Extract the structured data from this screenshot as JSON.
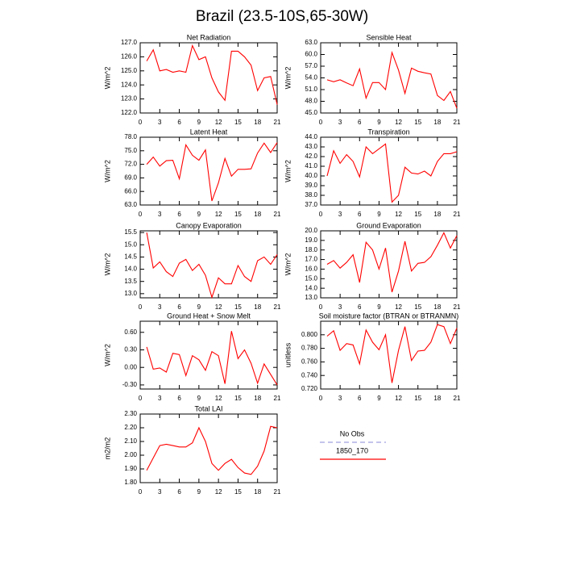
{
  "title": "Brazil (23.5-10S,65-30W)",
  "legend": [
    {
      "name": "No Obs",
      "color": "#a0a0e0",
      "dashed": true
    },
    {
      "name": "1850_170",
      "color": "#ff0000",
      "dashed": false
    }
  ],
  "chart_data": [
    {
      "type": "line",
      "title": "Net Radiation",
      "ylabel": "W/m^2",
      "color": "#ff0000",
      "x": [
        1,
        2,
        3,
        4,
        5,
        6,
        7,
        8,
        9,
        10,
        11,
        12,
        13,
        14,
        15,
        16,
        17,
        18,
        19,
        20,
        21
      ],
      "values": [
        125.7,
        126.5,
        125.0,
        125.1,
        124.9,
        125.0,
        124.9,
        126.8,
        125.8,
        126.0,
        124.5,
        123.5,
        122.9,
        126.4,
        126.4,
        126.0,
        125.4,
        123.6,
        124.5,
        124.6,
        122.6
      ],
      "xlim": [
        0,
        21
      ],
      "xticks": [
        0,
        3,
        6,
        9,
        12,
        15,
        18,
        21
      ],
      "ylim": [
        122,
        127
      ],
      "yticks": [
        {
          "value": 122,
          "label": "122.0"
        },
        {
          "value": 123,
          "label": "123.0"
        },
        {
          "value": 124,
          "label": "124.0"
        },
        {
          "value": 125,
          "label": "125.0"
        },
        {
          "value": 126,
          "label": "126.0"
        },
        {
          "value": 127,
          "label": "127.0"
        }
      ]
    },
    {
      "type": "line",
      "title": "Sensible Heat",
      "ylabel": "W/m^2",
      "color": "#ff0000",
      "x": [
        1,
        2,
        3,
        4,
        5,
        6,
        7,
        8,
        9,
        10,
        11,
        12,
        13,
        14,
        15,
        16,
        17,
        18,
        19,
        20,
        21
      ],
      "values": [
        53.5,
        53.0,
        53.5,
        52.7,
        52.0,
        56.3,
        48.8,
        52.8,
        52.8,
        51.0,
        60.5,
        56.0,
        50.0,
        56.5,
        55.7,
        55.3,
        55.0,
        49.5,
        48.2,
        50.5,
        46.2
      ],
      "xlim": [
        0,
        21
      ],
      "xticks": [
        0,
        3,
        6,
        9,
        12,
        15,
        18,
        21
      ],
      "ylim": [
        45,
        63
      ],
      "yticks": [
        {
          "value": 45,
          "label": "45.0"
        },
        {
          "value": 48,
          "label": "48.0"
        },
        {
          "value": 51,
          "label": "51.0"
        },
        {
          "value": 54,
          "label": "54.0"
        },
        {
          "value": 57,
          "label": "57.0"
        },
        {
          "value": 60,
          "label": "60.0"
        },
        {
          "value": 63,
          "label": "63.0"
        }
      ]
    },
    {
      "type": "line",
      "title": "Latent Heat",
      "ylabel": "W/m^2",
      "color": "#ff0000",
      "x": [
        1,
        2,
        3,
        4,
        5,
        6,
        7,
        8,
        9,
        10,
        11,
        12,
        13,
        14,
        15,
        16,
        17,
        18,
        19,
        20,
        21
      ],
      "values": [
        72.0,
        73.6,
        71.6,
        72.8,
        72.9,
        68.8,
        76.3,
        74.0,
        72.9,
        75.2,
        63.9,
        67.9,
        73.3,
        69.4,
        70.9,
        70.9,
        71.0,
        74.5,
        76.7,
        74.6,
        76.8
      ],
      "xlim": [
        0,
        21
      ],
      "xticks": [
        0,
        3,
        6,
        9,
        12,
        15,
        18,
        21
      ],
      "ylim": [
        63,
        78
      ],
      "yticks": [
        {
          "value": 63,
          "label": "63.0"
        },
        {
          "value": 66,
          "label": "66.0"
        },
        {
          "value": 69,
          "label": "69.0"
        },
        {
          "value": 72,
          "label": "72.0"
        },
        {
          "value": 75,
          "label": "75.0"
        },
        {
          "value": 78,
          "label": "78.0"
        }
      ]
    },
    {
      "type": "line",
      "title": "Transpiration",
      "ylabel": "W/m^2",
      "color": "#ff0000",
      "x": [
        1,
        2,
        3,
        4,
        5,
        6,
        7,
        8,
        9,
        10,
        11,
        12,
        13,
        14,
        15,
        16,
        17,
        18,
        19,
        20,
        21
      ],
      "values": [
        40.0,
        42.6,
        41.3,
        42.2,
        41.5,
        39.9,
        43.0,
        42.3,
        42.8,
        43.3,
        37.3,
        38.0,
        40.9,
        40.3,
        40.2,
        40.5,
        40.0,
        41.5,
        42.3,
        42.3,
        42.5
      ],
      "xlim": [
        0,
        21
      ],
      "xticks": [
        0,
        3,
        6,
        9,
        12,
        15,
        18,
        21
      ],
      "ylim": [
        37,
        44
      ],
      "yticks": [
        {
          "value": 37,
          "label": "37.0"
        },
        {
          "value": 38,
          "label": "38.0"
        },
        {
          "value": 39,
          "label": "39.0"
        },
        {
          "value": 40,
          "label": "40.0"
        },
        {
          "value": 41,
          "label": "41.0"
        },
        {
          "value": 42,
          "label": "42.0"
        },
        {
          "value": 43,
          "label": "43.0"
        },
        {
          "value": 44,
          "label": "44.0"
        }
      ]
    },
    {
      "type": "line",
      "title": "Canopy Evaporation",
      "ylabel": "W/m^2",
      "color": "#ff0000",
      "x": [
        1,
        2,
        3,
        4,
        5,
        6,
        7,
        8,
        9,
        10,
        11,
        12,
        13,
        14,
        15,
        16,
        17,
        18,
        19,
        20,
        21
      ],
      "values": [
        15.5,
        14.05,
        14.3,
        13.9,
        13.7,
        14.25,
        14.4,
        13.95,
        14.2,
        13.75,
        12.85,
        13.65,
        13.4,
        13.4,
        14.15,
        13.7,
        13.5,
        14.35,
        14.5,
        14.2,
        14.6
      ],
      "xlim": [
        0,
        21
      ],
      "xticks": [
        0,
        3,
        6,
        9,
        12,
        15,
        18,
        21
      ],
      "ylim": [
        12.83,
        15.57
      ],
      "yticks": [
        {
          "value": 13,
          "label": "13.0"
        },
        13.5,
        {
          "value": 14,
          "label": "14.0"
        },
        14.5,
        {
          "value": 15,
          "label": "15.0"
        },
        15.5
      ]
    },
    {
      "type": "line",
      "title": "Ground Evaporation",
      "ylabel": "W/m^2",
      "color": "#ff0000",
      "x": [
        1,
        2,
        3,
        4,
        5,
        6,
        7,
        8,
        9,
        10,
        11,
        12,
        13,
        14,
        15,
        16,
        17,
        18,
        19,
        20,
        21
      ],
      "values": [
        16.5,
        16.9,
        16.1,
        16.7,
        17.5,
        14.6,
        18.8,
        18.0,
        16.0,
        18.2,
        13.6,
        15.8,
        18.9,
        15.8,
        16.6,
        16.7,
        17.3,
        18.5,
        19.8,
        18.2,
        19.5
      ],
      "xlim": [
        0,
        21
      ],
      "xticks": [
        0,
        3,
        6,
        9,
        12,
        15,
        18,
        21
      ],
      "ylim": [
        13,
        20
      ],
      "yticks": [
        {
          "value": 13,
          "label": "13.0"
        },
        {
          "value": 14,
          "label": "14.0"
        },
        {
          "value": 15,
          "label": "15.0"
        },
        {
          "value": 16,
          "label": "16.0"
        },
        {
          "value": 17,
          "label": "17.0"
        },
        {
          "value": 18,
          "label": "18.0"
        },
        {
          "value": 19,
          "label": "19.0"
        },
        {
          "value": 20,
          "label": "20.0"
        }
      ]
    },
    {
      "type": "line",
      "title": "Ground Heat + Snow Melt",
      "ylabel": "W/m^2",
      "color": "#ff0000",
      "x": [
        1,
        2,
        3,
        4,
        5,
        6,
        7,
        8,
        9,
        10,
        11,
        12,
        13,
        14,
        15,
        16,
        17,
        18,
        19,
        20,
        21
      ],
      "values": [
        0.35,
        -0.03,
        -0.01,
        -0.08,
        0.24,
        0.22,
        -0.14,
        0.2,
        0.13,
        -0.05,
        0.27,
        0.2,
        -0.28,
        0.62,
        0.15,
        0.3,
        0.07,
        -0.27,
        0.06,
        -0.12,
        -0.3
      ],
      "xlim": [
        0,
        21
      ],
      "xticks": [
        0,
        3,
        6,
        9,
        12,
        15,
        18,
        21
      ],
      "ylim": [
        -0.37,
        0.79
      ],
      "yticks": [
        {
          "value": -0.3,
          "label": "-0.30"
        },
        {
          "value": 0,
          "label": "0.00"
        },
        {
          "value": 0.3,
          "label": "0.30"
        },
        {
          "value": 0.6,
          "label": "0.60"
        }
      ]
    },
    {
      "type": "line",
      "title": "Soil moisture factor (BTRAN or BTRANMN)",
      "ylabel": "unitless",
      "color": "#ff0000",
      "x": [
        1,
        2,
        3,
        4,
        5,
        6,
        7,
        8,
        9,
        10,
        11,
        12,
        13,
        14,
        15,
        16,
        17,
        18,
        19,
        20,
        21
      ],
      "values": [
        0.798,
        0.806,
        0.777,
        0.787,
        0.785,
        0.757,
        0.807,
        0.789,
        0.778,
        0.8,
        0.729,
        0.777,
        0.812,
        0.762,
        0.776,
        0.777,
        0.789,
        0.815,
        0.812,
        0.787,
        0.81
      ],
      "xlim": [
        0,
        21
      ],
      "xticks": [
        0,
        3,
        6,
        9,
        12,
        15,
        18,
        21
      ],
      "ylim": [
        0.72,
        0.82
      ],
      "yticks": [
        {
          "value": 0.72,
          "label": "0.720"
        },
        {
          "value": 0.74,
          "label": "0.740"
        },
        {
          "value": 0.76,
          "label": "0.760"
        },
        {
          "value": 0.78,
          "label": "0.780"
        },
        {
          "value": 0.8,
          "label": "0.800"
        }
      ]
    },
    {
      "type": "line",
      "title": "Total LAI",
      "ylabel": "m2/m2",
      "color": "#ff0000",
      "x": [
        1,
        2,
        3,
        4,
        5,
        6,
        7,
        8,
        9,
        10,
        11,
        12,
        13,
        14,
        15,
        16,
        17,
        18,
        19,
        20,
        21
      ],
      "values": [
        1.89,
        1.98,
        2.07,
        2.08,
        2.07,
        2.06,
        2.06,
        2.09,
        2.2,
        2.1,
        1.94,
        1.89,
        1.94,
        1.97,
        1.91,
        1.87,
        1.86,
        1.92,
        2.03,
        2.21,
        2.2
      ],
      "xlim": [
        0,
        21
      ],
      "xticks": [
        0,
        3,
        6,
        9,
        12,
        15,
        18,
        21
      ],
      "ylim": [
        1.8,
        2.3
      ],
      "yticks": [
        {
          "value": 1.8,
          "label": "1.80"
        },
        {
          "value": 1.9,
          "label": "1.90"
        },
        {
          "value": 2,
          "label": "2.00"
        },
        {
          "value": 2.1,
          "label": "2.10"
        },
        {
          "value": 2.2,
          "label": "2.20"
        },
        {
          "value": 2.3,
          "label": "2.30"
        }
      ]
    }
  ]
}
